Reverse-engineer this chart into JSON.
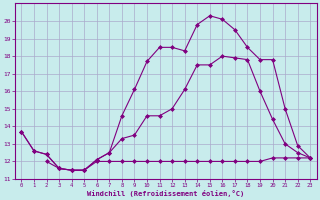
{
  "xlabel": "Windchill (Refroidissement éolien,°C)",
  "bg_color": "#c8ecec",
  "line_color": "#800080",
  "grid_color": "#aaaacc",
  "xlim": [
    -0.5,
    23.5
  ],
  "ylim": [
    11,
    21
  ],
  "yticks": [
    11,
    12,
    13,
    14,
    15,
    16,
    17,
    18,
    19,
    20
  ],
  "xticks": [
    0,
    1,
    2,
    3,
    4,
    5,
    6,
    7,
    8,
    9,
    10,
    11,
    12,
    13,
    14,
    15,
    16,
    17,
    18,
    19,
    20,
    21,
    22,
    23
  ],
  "series": [
    {
      "x": [
        0,
        1,
        2,
        3,
        4,
        5,
        6,
        7,
        8,
        9,
        10,
        11,
        12,
        13,
        14,
        15,
        16,
        17,
        18,
        19,
        20,
        21,
        22,
        23
      ],
      "y": [
        13.7,
        12.6,
        12.4,
        11.6,
        11.5,
        11.5,
        12.1,
        12.5,
        13.3,
        13.5,
        14.6,
        14.6,
        15.0,
        16.1,
        17.5,
        17.5,
        18.0,
        17.9,
        17.8,
        16.0,
        14.4,
        13.0,
        12.5,
        12.2
      ]
    },
    {
      "x": [
        0,
        1,
        2,
        3,
        4,
        5,
        6,
        7,
        8,
        9,
        10,
        11,
        12,
        13,
        14,
        15,
        16,
        17,
        18,
        19,
        20,
        21,
        22,
        23
      ],
      "y": [
        13.7,
        12.6,
        12.4,
        11.6,
        11.5,
        11.5,
        12.1,
        12.5,
        14.6,
        16.1,
        17.7,
        18.5,
        18.5,
        18.3,
        19.8,
        20.3,
        20.1,
        19.5,
        18.5,
        17.8,
        17.8,
        15.0,
        12.9,
        12.2
      ]
    },
    {
      "x": [
        2,
        3,
        4,
        5,
        6,
        7,
        8,
        9,
        10,
        11,
        12,
        13,
        14,
        15,
        16,
        17,
        18,
        19,
        20,
        21,
        22,
        23
      ],
      "y": [
        12.0,
        11.6,
        11.5,
        11.5,
        12.0,
        12.0,
        12.0,
        12.0,
        12.0,
        12.0,
        12.0,
        12.0,
        12.0,
        12.0,
        12.0,
        12.0,
        12.0,
        12.0,
        12.2,
        12.2,
        12.2,
        12.2
      ]
    }
  ]
}
